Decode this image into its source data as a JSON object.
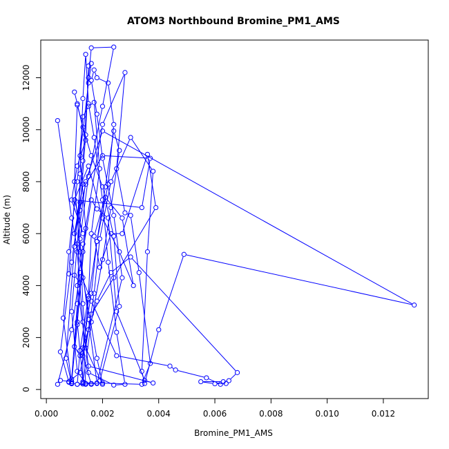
{
  "chart_data": {
    "type": "line",
    "title": "ATOM3 Northbound Bromine_PM1_AMS",
    "xlabel": "Bromine_PM1_AMS",
    "ylabel": "Altitude (m)",
    "xlim": [
      -0.0002,
      0.0136
    ],
    "ylim": [
      -350,
      13450
    ],
    "x_ticks": [
      0,
      0.002,
      0.004,
      0.006,
      0.008,
      0.01,
      0.012
    ],
    "x_tick_labels": [
      "0.000",
      "0.002",
      "0.004",
      "0.006",
      "0.008",
      "0.010",
      "0.012"
    ],
    "y_ticks": [
      0,
      2000,
      4000,
      6000,
      8000,
      10000,
      12000
    ],
    "y_tick_labels": [
      "0",
      "2000",
      "4000",
      "6000",
      "8000",
      "10000",
      "12000"
    ],
    "series_style": {
      "color": "#0000ff",
      "marker": "open-circle",
      "line": true
    },
    "grid": false,
    "legend": "none",
    "series": [
      {
        "points": [
          [
            0.0004,
            10350
          ],
          [
            0.0009,
            6600
          ],
          [
            0.0013,
            4300
          ],
          [
            0.0018,
            1200
          ],
          [
            0.002,
            250
          ],
          [
            0.0016,
            230
          ],
          [
            0.0013,
            300
          ],
          [
            0.0011,
            2600
          ],
          [
            0.0014,
            6200
          ],
          [
            0.0012,
            9000
          ],
          [
            0.0015,
            11800
          ],
          [
            0.0016,
            12550
          ],
          [
            0.0015,
            12450
          ],
          [
            0.0014,
            9800
          ],
          [
            0.0012,
            6900
          ],
          [
            0.0011,
            3300
          ],
          [
            0.0009,
            400
          ],
          [
            0.0008,
            280
          ],
          [
            0.0009,
            220
          ],
          [
            0.0007,
            1200
          ],
          [
            0.001,
            5500
          ],
          [
            0.0013,
            8800
          ],
          [
            0.0015,
            12000
          ],
          [
            0.0016,
            13150
          ],
          [
            0.0024,
            13180
          ],
          [
            0.002,
            10900
          ],
          [
            0.0015,
            8200
          ],
          [
            0.0012,
            5800
          ],
          [
            0.0013,
            3300
          ],
          [
            0.0015,
            650
          ],
          [
            0.0024,
            170
          ],
          [
            0.0028,
            200
          ],
          [
            0.0025,
            2200
          ],
          [
            0.0022,
            4900
          ],
          [
            0.002,
            7300
          ],
          [
            0.0017,
            9700
          ],
          [
            0.0015,
            11000
          ],
          [
            0.0014,
            12900
          ],
          [
            0.0013,
            11200
          ],
          [
            0.0012,
            8300
          ],
          [
            0.0011,
            5300
          ],
          [
            0.0013,
            2600
          ],
          [
            0.0014,
            200
          ],
          [
            0.0011,
            200
          ],
          [
            0.0009,
            250
          ],
          [
            0.0006,
            2750
          ],
          [
            0.0008,
            5300
          ],
          [
            0.0011,
            8000
          ],
          [
            0.0013,
            10500
          ],
          [
            0.0015,
            10900
          ],
          [
            0.0017,
            11050
          ],
          [
            0.0019,
            8500
          ],
          [
            0.0016,
            6000
          ],
          [
            0.0015,
            3600
          ],
          [
            0.0012,
            1500
          ],
          [
            0.0011,
            200
          ],
          [
            0.0013,
            250
          ],
          [
            0.0016,
            2600
          ],
          [
            0.002,
            5000
          ],
          [
            0.0023,
            7000
          ],
          [
            0.0026,
            9200
          ],
          [
            0.0024,
            9950
          ],
          [
            0.0021,
            7800
          ],
          [
            0.0018,
            5700
          ],
          [
            0.0016,
            3700
          ],
          [
            0.0013,
            1600
          ],
          [
            0.0013,
            210
          ],
          [
            0.0018,
            230
          ],
          [
            0.0027,
            4300
          ],
          [
            0.0024,
            6700
          ],
          [
            0.002,
            8900
          ],
          [
            0.0018,
            10600
          ],
          [
            0.0016,
            11900
          ],
          [
            0.0017,
            12300
          ],
          [
            0.0018,
            12000
          ],
          [
            0.0022,
            11800
          ],
          [
            0.0024,
            10200
          ],
          [
            0.0022,
            7900
          ],
          [
            0.0018,
            5700
          ],
          [
            0.0015,
            3500
          ],
          [
            0.0013,
            1300
          ],
          [
            0.0016,
            200
          ],
          [
            0.0014,
            230
          ],
          [
            0.0011,
            700
          ],
          [
            0.0009,
            3000
          ],
          [
            0.0011,
            5600
          ],
          [
            0.0014,
            8000
          ],
          [
            0.002,
            9950
          ],
          [
            0.0131,
            3250
          ],
          [
            0.0049,
            5200
          ],
          [
            0.004,
            2300
          ],
          [
            0.0035,
            230
          ],
          [
            0.0034,
            700
          ],
          [
            0.0036,
            5300
          ],
          [
            0.0038,
            8400
          ],
          [
            0.003,
            9700
          ],
          [
            0.0023,
            8000
          ],
          [
            0.0019,
            5800
          ],
          [
            0.0017,
            3700
          ],
          [
            0.0014,
            1600
          ],
          [
            0.002,
            200
          ],
          [
            0.0019,
            330
          ],
          [
            0.0026,
            3200
          ],
          [
            0.0024,
            5900
          ],
          [
            0.002,
            7800
          ],
          [
            0.0016,
            9000
          ],
          [
            0.0013,
            10100
          ],
          [
            0.0011,
            10950
          ],
          [
            0.001,
            8000
          ],
          [
            0.0012,
            5300
          ],
          [
            0.0015,
            2700
          ],
          [
            0.0018,
            250
          ],
          [
            0.0034,
            200
          ],
          [
            0.0037,
            1000
          ],
          [
            0.0033,
            4500
          ],
          [
            0.003,
            6700
          ],
          [
            0.0028,
            6800
          ],
          [
            0.0025,
            8500
          ],
          [
            0.0028,
            12200
          ],
          [
            0.002,
            10200
          ],
          [
            0.0013,
            5600
          ],
          [
            0.0011,
            4000
          ],
          [
            0.0015,
            900
          ],
          [
            0.0038,
            250
          ],
          [
            0.0035,
            350
          ],
          [
            0.0025,
            3000
          ],
          [
            0.0022,
            6600
          ],
          [
            0.0018,
            6950
          ],
          [
            0.0016,
            7300
          ],
          [
            0.0013,
            5300
          ],
          [
            0.0011,
            2500
          ],
          [
            0.0009,
            300
          ],
          [
            0.0005,
            350
          ],
          [
            0.0004,
            200
          ],
          [
            0.0009,
            2300
          ],
          [
            0.0012,
            4500
          ],
          [
            0.0016,
            3400
          ],
          [
            0.0025,
            1300
          ],
          [
            0.0044,
            900
          ],
          [
            0.0046,
            750
          ],
          [
            0.0057,
            450
          ],
          [
            0.0062,
            200
          ],
          [
            0.0064,
            230
          ],
          [
            0.006,
            220
          ],
          [
            0.0055,
            300
          ],
          [
            0.0063,
            300
          ],
          [
            0.0065,
            340
          ],
          [
            0.0068,
            650
          ],
          [
            0.003,
            5100
          ],
          [
            0.0023,
            4500
          ],
          [
            0.0018,
            3400
          ],
          [
            0.0015,
            2300
          ],
          [
            0.0012,
            1300
          ],
          [
            0.001,
            1650
          ],
          [
            0.0012,
            4100
          ],
          [
            0.001,
            4400
          ],
          [
            0.0008,
            4450
          ],
          [
            0.001,
            7300
          ],
          [
            0.0015,
            8600
          ],
          [
            0.002,
            6600
          ],
          [
            0.0026,
            5300
          ],
          [
            0.0031,
            4000
          ],
          [
            0.0027,
            6600
          ],
          [
            0.0021,
            7400
          ],
          [
            0.0017,
            5900
          ],
          [
            0.0019,
            4700
          ],
          [
            0.0023,
            6000
          ],
          [
            0.0027,
            6000
          ],
          [
            0.0036,
            9050
          ],
          [
            0.0039,
            7000
          ],
          [
            0.0024,
            4300
          ],
          [
            0.0016,
            2900
          ],
          [
            0.0012,
            650
          ],
          [
            0.0008,
            300
          ],
          [
            0.0005,
            1450
          ],
          [
            0.0009,
            4900
          ],
          [
            0.0012,
            7200
          ],
          [
            0.0013,
            7900
          ],
          [
            0.001,
            6000
          ],
          [
            0.0014,
            7900
          ],
          [
            0.002,
            9000
          ],
          [
            0.0037,
            8900
          ],
          [
            0.0034,
            7000
          ],
          [
            0.001,
            7300
          ],
          [
            0.0013,
            6000
          ],
          [
            0.0009,
            7300
          ],
          [
            0.0011,
            8600
          ],
          [
            0.0014,
            9600
          ],
          [
            0.0011,
            11000
          ],
          [
            0.001,
            11450
          ]
        ]
      }
    ]
  }
}
